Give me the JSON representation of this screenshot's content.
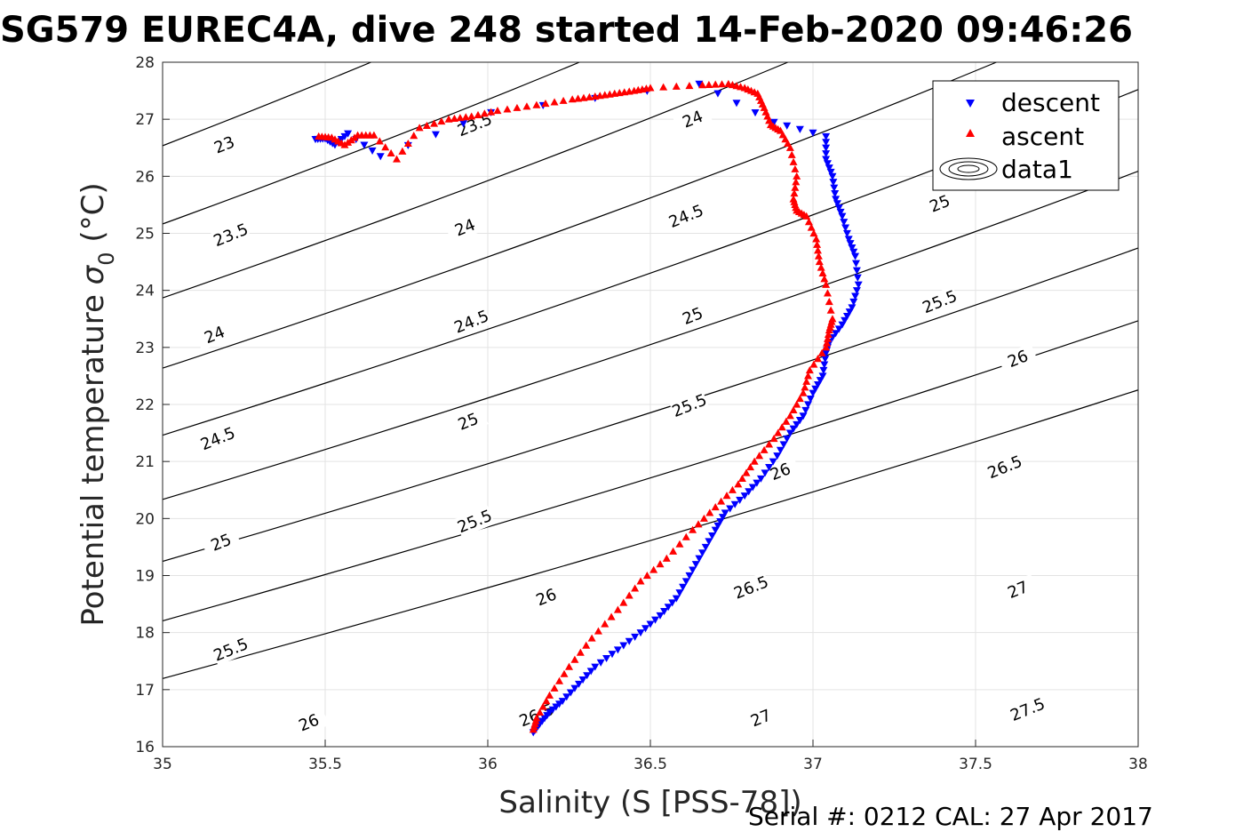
{
  "title": "SG579 EUREC4A, dive 248 started 14-Feb-2020 09:46:26",
  "footer": "Serial #: 0212  CAL: 27 Apr 2017",
  "chart_data": {
    "type": "scatter",
    "xlabel": "Salinity (S [PSS-78])",
    "ylabel": "Potential temperature",
    "ylabel_symbol": "σ",
    "ylabel_subscript": "0",
    "ylabel_unit": "(°C)",
    "xlim": [
      35,
      38
    ],
    "ylim": [
      16,
      28
    ],
    "xticks": [
      35,
      35.5,
      36,
      36.5,
      37,
      37.5,
      38
    ],
    "xtick_labels": [
      "35",
      "35.5",
      "36",
      "36.5",
      "37",
      "37.5",
      "38"
    ],
    "yticks": [
      16,
      17,
      18,
      19,
      20,
      21,
      22,
      23,
      24,
      25,
      26,
      27,
      28
    ],
    "ytick_labels": [
      "16",
      "17",
      "18",
      "19",
      "20",
      "21",
      "22",
      "23",
      "24",
      "25",
      "26",
      "27",
      "28"
    ],
    "grid": true,
    "legend_position": "top-right",
    "legend": [
      "descent",
      "ascent",
      "data1"
    ],
    "series": [
      {
        "name": "descent",
        "color": "#0000ff",
        "marker": "triangle-down",
        "x": [
          35.47,
          35.5,
          35.53,
          35.57,
          35.67,
          36.01,
          36.65,
          36.88,
          37.04,
          37.04,
          37.06,
          37.07,
          37.09,
          37.11,
          37.13,
          37.14,
          37.12,
          37.09,
          37.05,
          37.04,
          37.03,
          37.0,
          36.97,
          36.93,
          36.89,
          36.84,
          36.79,
          36.73,
          36.7,
          36.66,
          36.62,
          36.58,
          36.53,
          36.47,
          36.4,
          36.33,
          36.28,
          36.23,
          36.19,
          36.16,
          36.14
        ],
        "y": [
          26.65,
          26.66,
          26.55,
          26.75,
          26.35,
          27.12,
          27.62,
          26.95,
          26.7,
          26.3,
          26.0,
          25.6,
          25.3,
          24.9,
          24.6,
          24.1,
          23.7,
          23.4,
          23.1,
          22.9,
          22.5,
          22.2,
          21.8,
          21.5,
          21.1,
          20.7,
          20.4,
          20.1,
          19.8,
          19.4,
          19.0,
          18.6,
          18.3,
          18.0,
          17.7,
          17.4,
          17.1,
          16.8,
          16.6,
          16.4,
          16.25
        ]
      },
      {
        "name": "ascent",
        "color": "#ff0000",
        "marker": "triangle-up",
        "x": [
          35.48,
          35.52,
          35.56,
          35.6,
          35.65,
          35.72,
          35.79,
          35.88,
          35.95,
          36.03,
          36.15,
          36.26,
          36.33,
          36.39,
          36.45,
          36.5,
          36.66,
          36.74,
          36.79,
          36.83,
          36.85,
          36.87,
          36.9,
          36.93,
          36.95,
          36.94,
          36.95,
          36.98,
          37.01,
          37.02,
          37.04,
          37.06,
          37.05,
          37.04,
          36.99,
          36.97,
          36.93,
          36.88,
          36.82,
          36.77,
          36.7,
          36.63,
          36.55,
          36.47,
          36.4,
          36.32,
          36.25,
          36.19,
          36.15,
          36.14
        ],
        "y": [
          26.7,
          26.68,
          26.55,
          26.72,
          26.72,
          26.3,
          26.85,
          27.0,
          27.05,
          27.15,
          27.25,
          27.35,
          27.4,
          27.45,
          27.5,
          27.55,
          27.6,
          27.62,
          27.55,
          27.45,
          27.2,
          26.9,
          26.8,
          26.5,
          26.0,
          25.6,
          25.4,
          25.3,
          24.9,
          24.5,
          24.1,
          23.5,
          23.3,
          23.0,
          22.6,
          22.2,
          21.8,
          21.4,
          21.0,
          20.6,
          20.2,
          19.8,
          19.3,
          18.9,
          18.4,
          17.9,
          17.4,
          16.9,
          16.5,
          16.3
        ]
      }
    ],
    "contours": {
      "name": "data1",
      "color": "#000000",
      "levels": [
        23,
        23.5,
        24,
        24.5,
        25,
        25.5,
        26,
        26.5,
        27,
        27.5
      ],
      "labels": [
        {
          "text": "23",
          "x": 35.19,
          "y": 26.55
        },
        {
          "text": "23.5",
          "x": 35.21,
          "y": 24.97
        },
        {
          "text": "24",
          "x": 35.16,
          "y": 23.22
        },
        {
          "text": "24.5",
          "x": 35.17,
          "y": 21.4
        },
        {
          "text": "25",
          "x": 35.18,
          "y": 19.58
        },
        {
          "text": "25.5",
          "x": 35.21,
          "y": 17.7
        },
        {
          "text": "26",
          "x": 35.45,
          "y": 16.42
        },
        {
          "text": "23.5",
          "x": 35.96,
          "y": 26.9
        },
        {
          "text": "24",
          "x": 35.93,
          "y": 25.1
        },
        {
          "text": "24.5",
          "x": 35.95,
          "y": 23.45
        },
        {
          "text": "25",
          "x": 35.94,
          "y": 21.7
        },
        {
          "text": "25.5",
          "x": 35.96,
          "y": 19.95
        },
        {
          "text": "26",
          "x": 36.18,
          "y": 18.62
        },
        {
          "text": "26.5",
          "x": 36.15,
          "y": 16.55
        },
        {
          "text": "24",
          "x": 36.63,
          "y": 27.0
        },
        {
          "text": "24.5",
          "x": 36.61,
          "y": 25.3
        },
        {
          "text": "25",
          "x": 36.63,
          "y": 23.55
        },
        {
          "text": "25.5",
          "x": 36.62,
          "y": 21.98
        },
        {
          "text": "26",
          "x": 36.9,
          "y": 20.82
        },
        {
          "text": "26.5",
          "x": 36.81,
          "y": 18.79
        },
        {
          "text": "27",
          "x": 36.84,
          "y": 16.5
        },
        {
          "text": "25",
          "x": 37.39,
          "y": 25.52
        },
        {
          "text": "25.5",
          "x": 37.39,
          "y": 23.8
        },
        {
          "text": "26",
          "x": 37.63,
          "y": 22.8
        },
        {
          "text": "26.5",
          "x": 37.59,
          "y": 20.9
        },
        {
          "text": "27",
          "x": 37.63,
          "y": 18.75
        },
        {
          "text": "27.5",
          "x": 37.66,
          "y": 16.65
        }
      ]
    }
  }
}
